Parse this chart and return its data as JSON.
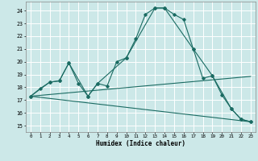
{
  "title": "",
  "xlabel": "Humidex (Indice chaleur)",
  "ylabel": "",
  "background_color": "#cce8e8",
  "grid_color": "#ffffff",
  "line_color": "#1a6b62",
  "xlim": [
    -0.5,
    23.5
  ],
  "ylim": [
    14.5,
    24.7
  ],
  "yticks": [
    15,
    16,
    17,
    18,
    19,
    20,
    21,
    22,
    23,
    24
  ],
  "xticks": [
    0,
    1,
    2,
    3,
    4,
    5,
    6,
    7,
    8,
    9,
    10,
    11,
    12,
    13,
    14,
    15,
    16,
    17,
    18,
    19,
    20,
    21,
    22,
    23
  ],
  "series_main": {
    "x": [
      0,
      1,
      2,
      3,
      4,
      5,
      6,
      7,
      8,
      9,
      10,
      11,
      12,
      13,
      14,
      15,
      16,
      17,
      18,
      19,
      20,
      21,
      22,
      23
    ],
    "y": [
      17.3,
      17.9,
      18.4,
      18.5,
      19.9,
      18.3,
      17.3,
      18.3,
      18.1,
      20.0,
      20.3,
      21.8,
      23.7,
      24.2,
      24.2,
      23.7,
      23.3,
      21.0,
      18.7,
      18.9,
      17.4,
      16.3,
      15.5,
      15.3
    ]
  },
  "series_secondary": {
    "x": [
      0,
      2,
      3,
      4,
      6,
      7,
      10,
      13,
      14,
      17,
      19,
      21,
      22,
      23
    ],
    "y": [
      17.3,
      18.4,
      18.5,
      19.9,
      17.3,
      18.3,
      20.3,
      24.2,
      24.2,
      21.0,
      18.9,
      16.3,
      15.5,
      15.3
    ]
  },
  "series_flat": {
    "x": [
      0,
      23
    ],
    "y": [
      17.3,
      18.85
    ]
  },
  "series_decline": {
    "x": [
      0,
      23
    ],
    "y": [
      17.3,
      15.3
    ]
  }
}
